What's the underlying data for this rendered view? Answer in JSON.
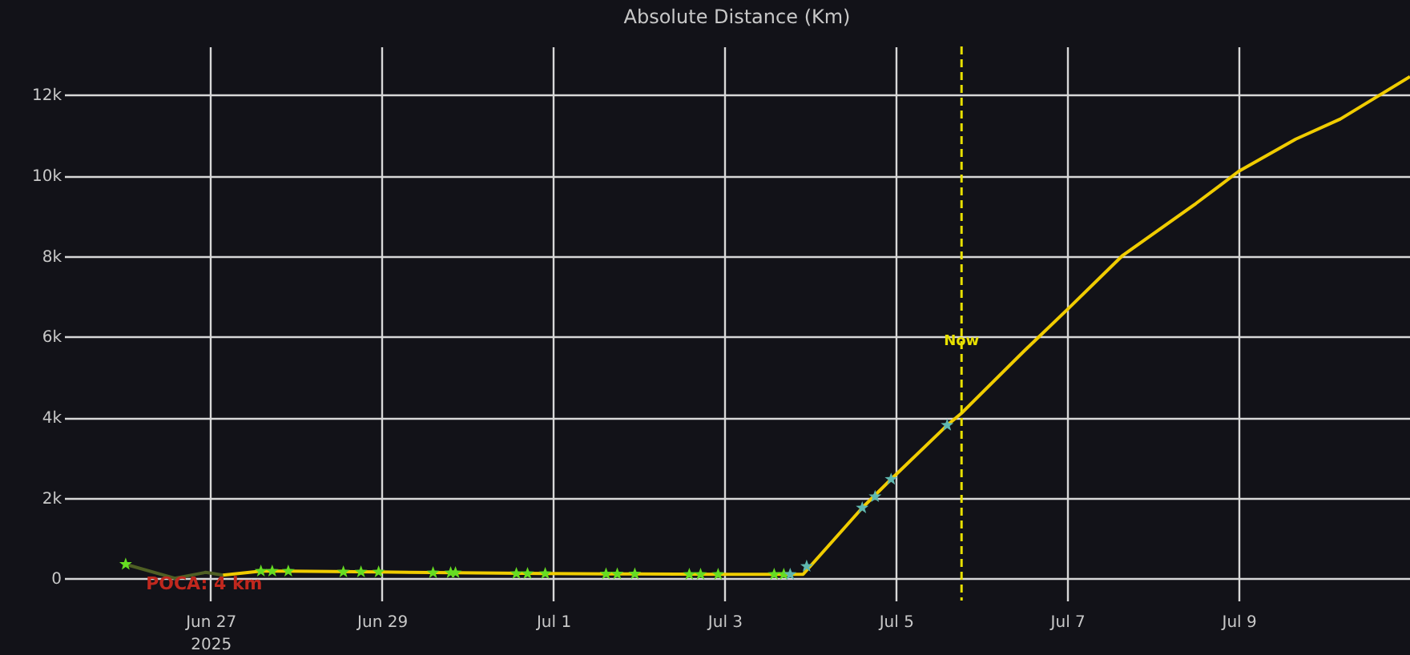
{
  "chart_data": {
    "type": "line",
    "title": "Absolute Distance (Km)",
    "xlim": [
      "2025-06-25T07:00",
      "2025-07-11T00:00"
    ],
    "xticks": [
      {
        "value": "2025-06-27",
        "label": "Jun 27\n2025"
      },
      {
        "value": "2025-06-29",
        "label": "Jun 29"
      },
      {
        "value": "2025-07-01",
        "label": "Jul 1"
      },
      {
        "value": "2025-07-03",
        "label": "Jul 3"
      },
      {
        "value": "2025-07-05",
        "label": "Jul 5"
      },
      {
        "value": "2025-07-07",
        "label": "Jul 7"
      },
      {
        "value": "2025-07-09",
        "label": "Jul 9"
      }
    ],
    "ylim": [
      -550,
      13200
    ],
    "yticks": [
      0,
      {
        "value": 2000,
        "label": "2k"
      },
      {
        "value": 4000,
        "label": "4k"
      },
      {
        "value": 6000,
        "label": "6k"
      },
      {
        "value": 8000,
        "label": "8k"
      },
      {
        "value": 10000,
        "label": "10k"
      },
      {
        "value": 12000,
        "label": "12k"
      }
    ],
    "grid": true,
    "legend": false,
    "series": [
      {
        "type": "line",
        "color": "#4f5f24",
        "marker": "none",
        "x": [
          "2025-06-26T00:15",
          "2025-06-26T14:00",
          "2025-06-26T22:40",
          "2025-06-27T03:30"
        ],
        "values": [
          350,
          4,
          150,
          80
        ]
      },
      {
        "type": "line",
        "color": "#f0cc00",
        "marker": "none",
        "x": [
          "2025-06-27T03:30",
          "2025-06-27T14:08",
          "2025-06-27T21:48",
          "2025-06-28T23:06",
          "2025-06-29T20:38",
          "2025-06-30T21:46",
          "2025-07-01T22:52",
          "2025-07-02T22:12",
          "2025-07-03T22:00",
          "2025-07-04T14:34",
          "2025-07-04T22:39",
          "2025-07-05T14:21",
          "2025-07-05T18:23",
          "2025-07-06T12:00",
          "2025-07-07T00:00",
          "2025-07-07T15:20",
          "2025-07-08T12:00",
          "2025-07-09T00:00",
          "2025-07-09T16:00",
          "2025-07-10T04:30",
          "2025-07-11T00:00"
        ],
        "values": [
          80,
          180,
          180,
          160,
          140,
          120,
          110,
          100,
          100,
          1750,
          2460,
          3800,
          4100,
          5650,
          6670,
          8000,
          9300,
          10100,
          10900,
          11400,
          12450
        ]
      },
      {
        "type": "scatter",
        "color": "#66dd22",
        "marker": "star",
        "x": [
          "2025-06-26T00:15",
          "2025-06-27T14:08",
          "2025-06-27T17:18",
          "2025-06-27T21:48",
          "2025-06-28T13:14",
          "2025-06-28T18:10",
          "2025-06-28T23:06",
          "2025-06-29T14:21",
          "2025-06-29T19:17",
          "2025-06-29T20:38",
          "2025-06-30T13:41",
          "2025-06-30T16:49",
          "2025-06-30T21:46",
          "2025-07-01T14:48",
          "2025-07-01T17:57",
          "2025-07-01T22:52",
          "2025-07-02T14:08",
          "2025-07-02T17:17",
          "2025-07-02T22:12",
          "2025-07-03T13:54",
          "2025-07-03T16:36"
        ],
        "values": [
          350,
          180,
          180,
          180,
          160,
          160,
          160,
          140,
          140,
          140,
          120,
          120,
          120,
          110,
          110,
          110,
          100,
          100,
          100,
          100,
          100
        ]
      },
      {
        "type": "scatter",
        "color": "#5fb8b0",
        "marker": "star",
        "x": [
          "2025-07-03T18:23",
          "2025-07-03T23:00",
          "2025-07-04T14:34",
          "2025-07-04T18:10",
          "2025-07-04T22:39",
          "2025-07-05T14:21"
        ],
        "values": [
          100,
          300,
          1750,
          2030,
          2460,
          3800
        ]
      }
    ],
    "ref_lines": [
      {
        "axis": "x",
        "value": "2025-07-05T18:23",
        "label": "Now",
        "color": "#e8e000",
        "line_style": "dashed"
      }
    ],
    "annotations": [
      {
        "text": "POCA: 4 km",
        "x": "2025-06-26T14:00",
        "y": 4
      }
    ]
  }
}
